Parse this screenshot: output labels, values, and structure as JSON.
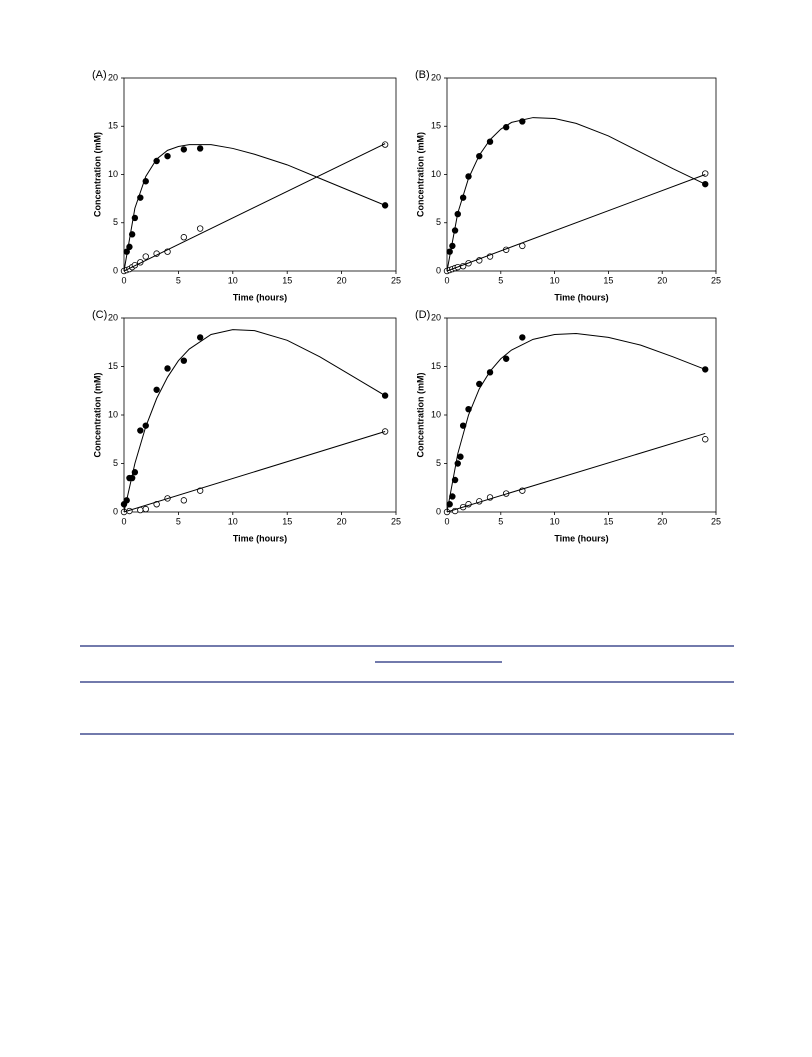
{
  "chart_data": [
    {
      "type": "scatter",
      "title": "(A)",
      "xlabel": "Time (hours)",
      "ylabel": "Concentration (mM)",
      "xlim": [
        0,
        25
      ],
      "ylim": [
        0,
        20
      ],
      "xticks": [
        0,
        5,
        10,
        15,
        20,
        25
      ],
      "yticks": [
        0,
        5,
        10,
        15,
        20
      ],
      "series": [
        {
          "style": "filled",
          "color": "#000000",
          "x": [
            0.25,
            0.5,
            0.75,
            1,
            1.5,
            2,
            3,
            4,
            5.5,
            7,
            24
          ],
          "values": [
            2,
            2.5,
            3.8,
            5.5,
            7.6,
            9.3,
            11.4,
            11.9,
            12.6,
            12.7,
            6.8
          ]
        },
        {
          "style": "open",
          "color": "#000000",
          "x": [
            0,
            0.25,
            0.5,
            0.75,
            1,
            1.5,
            2,
            3,
            4,
            5.5,
            7,
            24
          ],
          "values": [
            0,
            0.1,
            0.2,
            0.4,
            0.6,
            0.9,
            1.5,
            1.8,
            2,
            3.5,
            4.4,
            13.1
          ]
        },
        {
          "style": "line",
          "color": "#000000",
          "x": [
            0,
            1,
            2,
            3,
            4,
            5,
            6,
            8,
            10,
            12,
            15,
            18,
            21,
            24
          ],
          "values": [
            0,
            6.5,
            9.8,
            11.6,
            12.5,
            12.9,
            13.1,
            13.1,
            12.7,
            12.1,
            11,
            9.6,
            8.2,
            6.8
          ]
        },
        {
          "style": "line",
          "color": "#000000",
          "x": [
            0,
            24
          ],
          "values": [
            0,
            13.2
          ]
        }
      ]
    },
    {
      "type": "scatter",
      "title": "(B)",
      "xlabel": "Time (hours)",
      "ylabel": "Concentration (mM)",
      "xlim": [
        0,
        25
      ],
      "ylim": [
        0,
        20
      ],
      "xticks": [
        0,
        5,
        10,
        15,
        20,
        25
      ],
      "yticks": [
        0,
        5,
        10,
        15,
        20
      ],
      "series": [
        {
          "style": "filled",
          "color": "#000000",
          "x": [
            0.25,
            0.5,
            0.75,
            1,
            1.5,
            2,
            3,
            4,
            5.5,
            7,
            24
          ],
          "values": [
            2,
            2.6,
            4.2,
            5.9,
            7.6,
            9.8,
            11.9,
            13.4,
            14.9,
            15.5,
            9
          ]
        },
        {
          "style": "open",
          "color": "#000000",
          "x": [
            0,
            0.25,
            0.5,
            0.75,
            1,
            1.5,
            2,
            3,
            4,
            5.5,
            7,
            24
          ],
          "values": [
            0,
            0.1,
            0.2,
            0.3,
            0.4,
            0.5,
            0.8,
            1.1,
            1.5,
            2.2,
            2.6,
            10.1
          ]
        },
        {
          "style": "line",
          "color": "#000000",
          "x": [
            0,
            1,
            2,
            3,
            4,
            5,
            6,
            8,
            10,
            12,
            15,
            18,
            21,
            24
          ],
          "values": [
            0,
            6,
            9.6,
            12,
            13.6,
            14.7,
            15.4,
            15.9,
            15.8,
            15.3,
            14,
            12.3,
            10.6,
            9
          ]
        },
        {
          "style": "line",
          "color": "#000000",
          "x": [
            0,
            24
          ],
          "values": [
            0,
            10
          ]
        }
      ]
    },
    {
      "type": "scatter",
      "title": "(C)",
      "xlabel": "Time (hours)",
      "ylabel": "Concentration (mM)",
      "xlim": [
        0,
        25
      ],
      "ylim": [
        0,
        20
      ],
      "xticks": [
        0,
        5,
        10,
        15,
        20,
        25
      ],
      "yticks": [
        0,
        5,
        10,
        15,
        20
      ],
      "series": [
        {
          "style": "filled",
          "color": "#000000",
          "x": [
            0,
            0.25,
            0.5,
            0.75,
            1,
            1.5,
            2,
            3,
            4,
            5.5,
            7,
            24
          ],
          "values": [
            0.8,
            1.2,
            3.5,
            3.5,
            4.1,
            8.4,
            8.9,
            12.6,
            14.8,
            15.6,
            18,
            12
          ]
        },
        {
          "style": "open",
          "color": "#000000",
          "x": [
            0,
            0.5,
            1.5,
            2,
            3,
            4,
            5.5,
            7,
            24
          ],
          "values": [
            0,
            0.1,
            0.2,
            0.3,
            0.8,
            1.4,
            1.2,
            2.2,
            8.3
          ]
        },
        {
          "style": "line",
          "color": "#000000",
          "x": [
            0,
            1,
            2,
            3,
            4,
            5,
            6,
            8,
            10,
            12,
            15,
            18,
            21,
            24
          ],
          "values": [
            0,
            5,
            8.8,
            11.7,
            13.9,
            15.6,
            16.8,
            18.3,
            18.8,
            18.7,
            17.7,
            16,
            14,
            12
          ]
        },
        {
          "style": "line",
          "color": "#000000",
          "x": [
            0,
            24
          ],
          "values": [
            0,
            8.3
          ]
        }
      ]
    },
    {
      "type": "scatter",
      "title": "(D)",
      "xlabel": "Time (hours)",
      "ylabel": "Concentration (mM)",
      "xlim": [
        0,
        25
      ],
      "ylim": [
        0,
        20
      ],
      "xticks": [
        0,
        5,
        10,
        15,
        20,
        25
      ],
      "yticks": [
        0,
        5,
        10,
        15,
        20
      ],
      "series": [
        {
          "style": "filled",
          "color": "#000000",
          "x": [
            0.25,
            0.5,
            0.75,
            1,
            1.25,
            1.5,
            2,
            3,
            4,
            5.5,
            7,
            24
          ],
          "values": [
            0.8,
            1.6,
            3.3,
            5,
            5.7,
            8.9,
            10.6,
            13.2,
            14.4,
            15.8,
            18,
            14.7
          ]
        },
        {
          "style": "open",
          "color": "#000000",
          "x": [
            0,
            0.75,
            1.5,
            2,
            3,
            4,
            5.5,
            7,
            24
          ],
          "values": [
            0,
            0.1,
            0.5,
            0.8,
            1.1,
            1.5,
            1.9,
            2.2,
            7.5
          ]
        },
        {
          "style": "line",
          "color": "#000000",
          "x": [
            0,
            1,
            2,
            3,
            4,
            5,
            6,
            8,
            10,
            12,
            15,
            18,
            21,
            24
          ],
          "values": [
            0,
            6,
            10,
            12.7,
            14.5,
            15.8,
            16.7,
            17.8,
            18.3,
            18.4,
            18,
            17.2,
            16,
            14.7
          ]
        },
        {
          "style": "line",
          "color": "#000000",
          "x": [
            0,
            24
          ],
          "values": [
            0,
            8.1
          ]
        }
      ]
    }
  ]
}
